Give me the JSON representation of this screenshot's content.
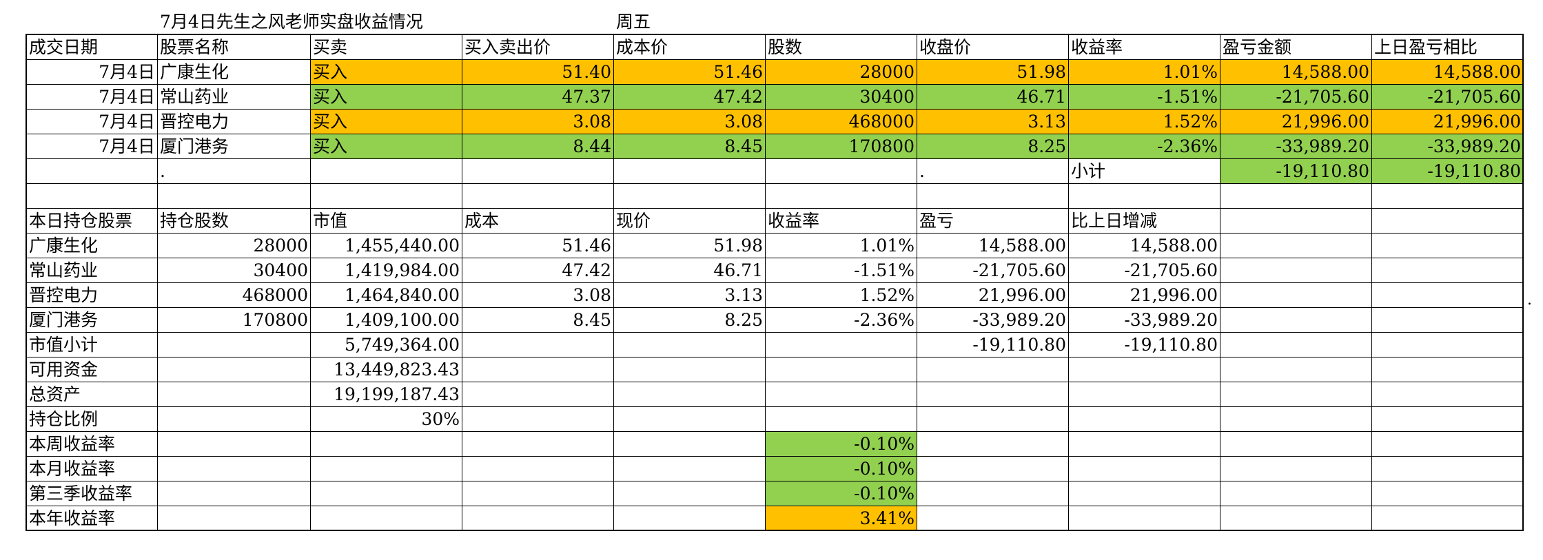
{
  "title": "7月4日先生之风老师实盘收益情况",
  "weekday": "周五",
  "colors": {
    "orange": "#ffc000",
    "green": "#92d050",
    "grid": "#000000"
  },
  "trades": {
    "headers": [
      "成交日期",
      "股票名称",
      "买卖",
      "买入卖出价",
      "成本价",
      "股数",
      "收盘价",
      "收益率",
      "盈亏金额",
      "上日盈亏相比"
    ],
    "rows": [
      {
        "date": "7月4日",
        "name": "广康生化",
        "action": "买入",
        "trade_price": "51.40",
        "cost": "51.46",
        "shares": "28000",
        "close": "51.98",
        "return": "1.01%",
        "pnl": "14,588.00",
        "vs_prev": "14,588.00",
        "color": "orange"
      },
      {
        "date": "7月4日",
        "name": "常山药业",
        "action": "买入",
        "trade_price": "47.37",
        "cost": "47.42",
        "shares": "30400",
        "close": "46.71",
        "return": "-1.51%",
        "pnl": "-21,705.60",
        "vs_prev": "-21,705.60",
        "color": "green"
      },
      {
        "date": "7月4日",
        "name": "晋控电力",
        "action": "买入",
        "trade_price": "3.08",
        "cost": "3.08",
        "shares": "468000",
        "close": "3.13",
        "return": "1.52%",
        "pnl": "21,996.00",
        "vs_prev": "21,996.00",
        "color": "orange"
      },
      {
        "date": "7月4日",
        "name": "厦门港务",
        "action": "买入",
        "trade_price": "8.44",
        "cost": "8.45",
        "shares": "170800",
        "close": "8.25",
        "return": "-2.36%",
        "pnl": "-33,989.20",
        "vs_prev": "-33,989.20",
        "color": "green"
      }
    ],
    "subtotal_label": "小计",
    "subtotal_pnl": "-19,110.80",
    "subtotal_vs_prev": "-19,110.80",
    "dot": "."
  },
  "holdings": {
    "headers": [
      "本日持仓股票",
      "持仓股数",
      "市值",
      "成本",
      "现价",
      "收益率",
      "盈亏",
      "比上日增减"
    ],
    "rows": [
      {
        "name": "广康生化",
        "shares": "28000",
        "value": "1,455,440.00",
        "cost": "51.46",
        "price": "51.98",
        "return": "1.01%",
        "pnl": "14,588.00",
        "change": "14,588.00"
      },
      {
        "name": "常山药业",
        "shares": "30400",
        "value": "1,419,984.00",
        "cost": "47.42",
        "price": "46.71",
        "return": "-1.51%",
        "pnl": "-21,705.60",
        "change": "-21,705.60"
      },
      {
        "name": "晋控电力",
        "shares": "468000",
        "value": "1,464,840.00",
        "cost": "3.08",
        "price": "3.13",
        "return": "1.52%",
        "pnl": "21,996.00",
        "change": "21,996.00"
      },
      {
        "name": "厦门港务",
        "shares": "170800",
        "value": "1,409,100.00",
        "cost": "8.45",
        "price": "8.25",
        "return": "-2.36%",
        "pnl": "-33,989.20",
        "change": "-33,989.20"
      }
    ]
  },
  "summary": {
    "market_value_label": "市值小计",
    "market_value": "5,749,364.00",
    "pnl_total": "-19,110.80",
    "change_total": "-19,110.80",
    "cash_label": "可用资金",
    "cash": "13,449,823.43",
    "assets_label": "总资产",
    "assets": "19,199,187.43",
    "ratio_label": "持仓比例",
    "ratio": "30%"
  },
  "returns": [
    {
      "label": "本周收益率",
      "value": "-0.10%",
      "color": "green"
    },
    {
      "label": "本月收益率",
      "value": "-0.10%",
      "color": "green"
    },
    {
      "label": "第三季收益率",
      "value": "-0.10%",
      "color": "green"
    },
    {
      "label": "本年收益率",
      "value": "3.41%",
      "color": "orange"
    }
  ],
  "margin_dot": "."
}
